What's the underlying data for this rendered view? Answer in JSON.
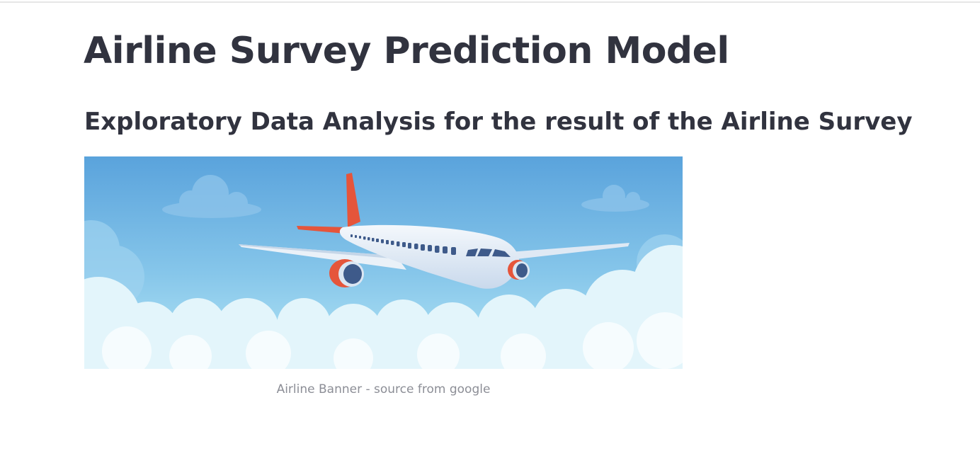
{
  "page": {
    "title": "Airline Survey Prediction Model",
    "subtitle": "Exploratory Data Analysis for the result of the Airline Survey"
  },
  "banner": {
    "image_icon": "airplane-in-clouds-illustration",
    "caption": "Airline Banner - source from google"
  },
  "colors": {
    "text_primary": "#31333f",
    "caption_text": "#8c8e96",
    "sky_top": "#5aa3dc",
    "sky_bottom": "#a7e1f4",
    "tail_accent": "#e5553b",
    "engine_blue": "#3e5a8a"
  }
}
